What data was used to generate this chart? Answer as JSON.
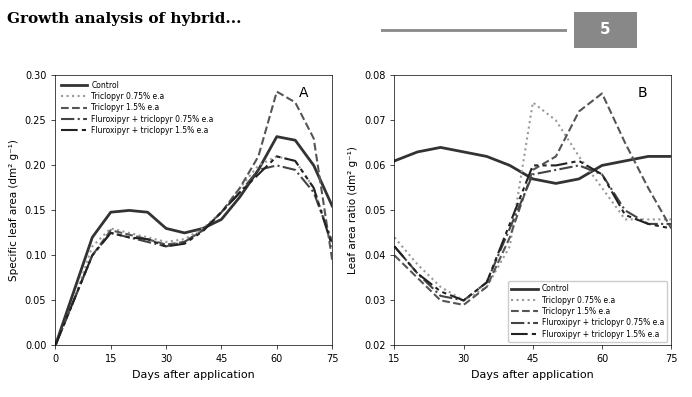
{
  "title": "Growth analysis of hybrid...",
  "page_num": "5",
  "panel_A": {
    "label": "A",
    "ylabel": "Specific leaf area (dm² g⁻¹)",
    "xlabel": "Days after application",
    "xlim": [
      0,
      75
    ],
    "ylim": [
      0.0,
      0.3
    ],
    "yticks": [
      0.0,
      0.05,
      0.1,
      0.15,
      0.2,
      0.25,
      0.3
    ],
    "xticks": [
      0,
      15,
      30,
      45,
      60,
      75
    ],
    "series": [
      {
        "name": "Control",
        "style": "solid",
        "color": "#333333",
        "linewidth": 2.0,
        "x": [
          0,
          5,
          10,
          15,
          20,
          25,
          30,
          35,
          40,
          45,
          50,
          55,
          60,
          65,
          70,
          75
        ],
        "y": [
          0.0,
          0.06,
          0.12,
          0.148,
          0.15,
          0.148,
          0.13,
          0.125,
          0.13,
          0.14,
          0.165,
          0.195,
          0.232,
          0.228,
          0.2,
          0.155
        ]
      },
      {
        "name": "Triclopyr 0.75% e.a",
        "style": "dotted",
        "color": "#999999",
        "linewidth": 1.5,
        "x": [
          0,
          5,
          10,
          15,
          20,
          25,
          30,
          35,
          40,
          45,
          50,
          55,
          60,
          65,
          70,
          75
        ],
        "y": [
          0.0,
          0.05,
          0.11,
          0.13,
          0.125,
          0.12,
          0.115,
          0.118,
          0.13,
          0.148,
          0.175,
          0.2,
          0.21,
          0.205,
          0.175,
          0.115
        ]
      },
      {
        "name": "Triclopyr 1.5% e.a",
        "style": "dashed",
        "color": "#555555",
        "linewidth": 1.5,
        "x": [
          0,
          5,
          10,
          15,
          20,
          25,
          30,
          35,
          40,
          45,
          50,
          55,
          60,
          65,
          70,
          75
        ],
        "y": [
          0.0,
          0.05,
          0.1,
          0.128,
          0.123,
          0.118,
          0.112,
          0.115,
          0.128,
          0.148,
          0.175,
          0.21,
          0.282,
          0.27,
          0.23,
          0.095
        ]
      },
      {
        "name": "Fluroxipyr + triclopyr 0.75% e.a",
        "style": "dashdot",
        "color": "#444444",
        "linewidth": 1.5,
        "x": [
          0,
          5,
          10,
          15,
          20,
          25,
          30,
          35,
          40,
          45,
          50,
          55,
          60,
          65,
          70,
          75
        ],
        "y": [
          0.0,
          0.05,
          0.1,
          0.125,
          0.12,
          0.115,
          0.11,
          0.115,
          0.128,
          0.148,
          0.17,
          0.195,
          0.2,
          0.195,
          0.17,
          0.115
        ]
      },
      {
        "name": "Fluroxipyr + triclopyr 1.5% e.a",
        "style": "loosely_dashed",
        "color": "#222222",
        "linewidth": 1.5,
        "x": [
          0,
          5,
          10,
          15,
          20,
          25,
          30,
          35,
          40,
          45,
          50,
          55,
          60,
          65,
          70,
          75
        ],
        "y": [
          0.0,
          0.05,
          0.1,
          0.125,
          0.12,
          0.118,
          0.11,
          0.113,
          0.127,
          0.148,
          0.17,
          0.19,
          0.21,
          0.205,
          0.175,
          0.11
        ]
      }
    ]
  },
  "panel_B": {
    "label": "B",
    "ylabel": "Leaf area ratio (dm² g⁻¹)",
    "xlabel": "Days after application",
    "xlim": [
      15,
      75
    ],
    "ylim": [
      0.02,
      0.08
    ],
    "yticks": [
      0.02,
      0.03,
      0.04,
      0.05,
      0.06,
      0.07,
      0.08
    ],
    "xticks": [
      15,
      30,
      45,
      60,
      75
    ],
    "series": [
      {
        "name": "Control",
        "style": "solid",
        "color": "#333333",
        "linewidth": 2.0,
        "x": [
          15,
          20,
          25,
          30,
          35,
          40,
          45,
          50,
          55,
          60,
          65,
          70,
          75
        ],
        "y": [
          0.061,
          0.063,
          0.064,
          0.063,
          0.062,
          0.06,
          0.057,
          0.056,
          0.057,
          0.06,
          0.061,
          0.062,
          0.062
        ]
      },
      {
        "name": "Triclopyr 0.75% e.a",
        "style": "dotted",
        "color": "#999999",
        "linewidth": 1.5,
        "x": [
          15,
          20,
          25,
          30,
          35,
          40,
          45,
          50,
          55,
          60,
          65,
          70,
          75
        ],
        "y": [
          0.044,
          0.038,
          0.033,
          0.03,
          0.033,
          0.042,
          0.074,
          0.07,
          0.062,
          0.055,
          0.048,
          0.048,
          0.048
        ]
      },
      {
        "name": "Triclopyr 1.5% e.a",
        "style": "dashed",
        "color": "#555555",
        "linewidth": 1.5,
        "x": [
          15,
          20,
          25,
          30,
          35,
          40,
          45,
          50,
          55,
          60,
          65,
          70,
          75
        ],
        "y": [
          0.04,
          0.035,
          0.03,
          0.029,
          0.033,
          0.044,
          0.059,
          0.062,
          0.072,
          0.076,
          0.065,
          0.055,
          0.046
        ]
      },
      {
        "name": "Fluroxipyr + triclopyr 0.75% e.a",
        "style": "dashdot",
        "color": "#444444",
        "linewidth": 1.5,
        "x": [
          15,
          20,
          25,
          30,
          35,
          40,
          45,
          50,
          55,
          60,
          65,
          70,
          75
        ],
        "y": [
          0.042,
          0.036,
          0.031,
          0.03,
          0.034,
          0.046,
          0.058,
          0.059,
          0.06,
          0.058,
          0.05,
          0.047,
          0.047
        ]
      },
      {
        "name": "Fluroxipyr + triclopyr 1.5% e.a",
        "style": "loosely_dashed",
        "color": "#222222",
        "linewidth": 1.5,
        "x": [
          15,
          20,
          25,
          30,
          35,
          40,
          45,
          50,
          55,
          60,
          65,
          70,
          75
        ],
        "y": [
          0.042,
          0.036,
          0.032,
          0.03,
          0.034,
          0.047,
          0.06,
          0.06,
          0.061,
          0.058,
          0.049,
          0.047,
          0.046
        ]
      }
    ]
  },
  "background_color": "#ffffff",
  "text_color": "#000000"
}
